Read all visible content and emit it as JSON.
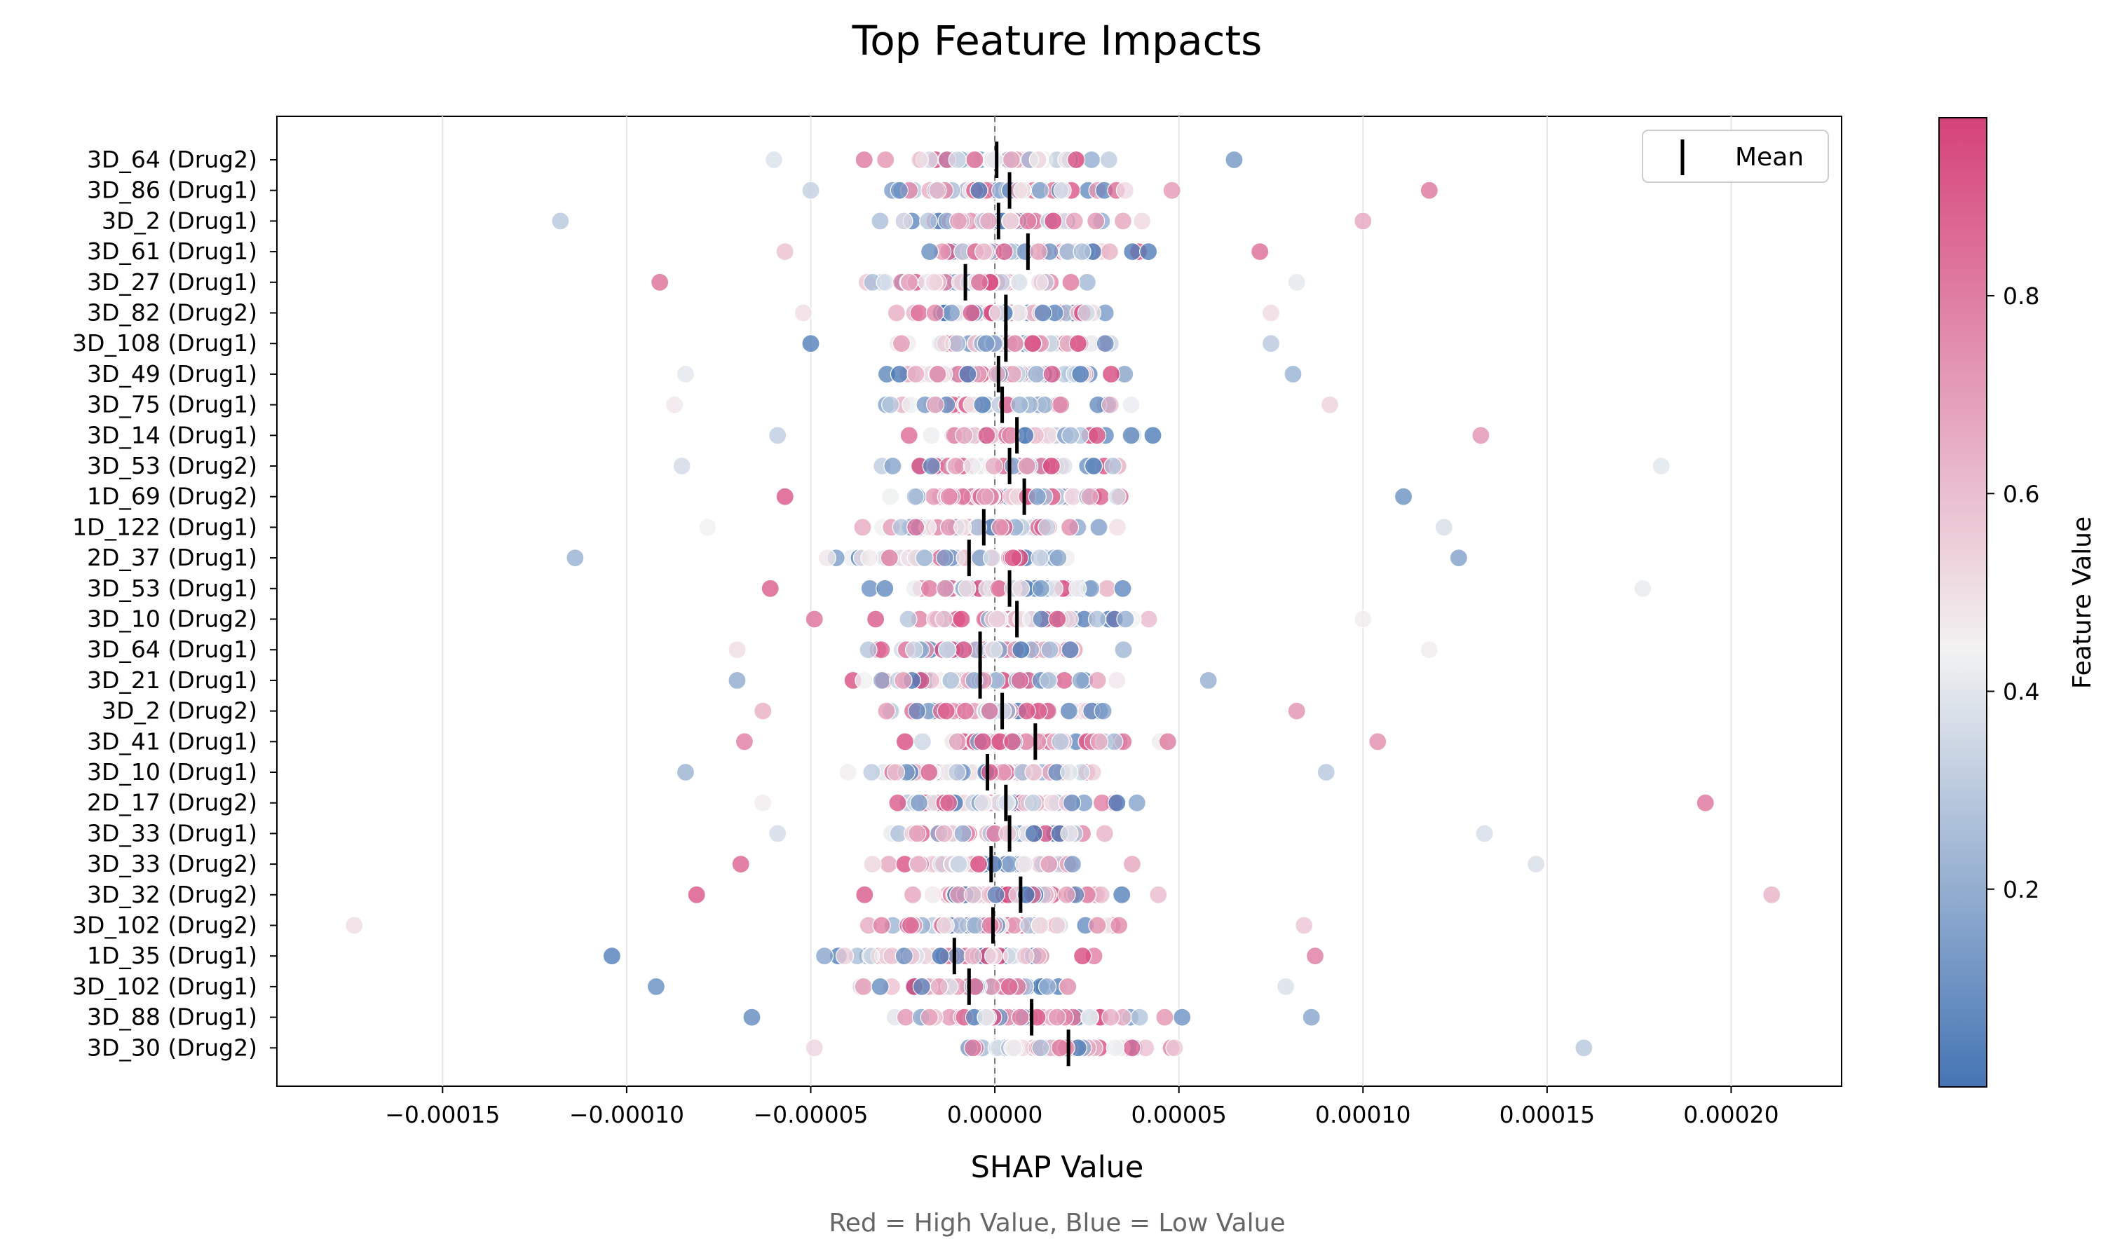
{
  "chart_data": {
    "type": "scatter",
    "title": "Top Feature Impacts",
    "xlabel": "SHAP Value",
    "ylabel": "",
    "footnote": "Red = High Value, Blue = Low Value",
    "xlim": [
      -0.000195,
      0.00023
    ],
    "x_ticks": [
      -0.00015,
      -0.0001,
      -5e-05,
      0.0,
      5e-05,
      0.0001,
      0.00015,
      0.0002
    ],
    "x_tick_labels": [
      "−0.00015",
      "−0.00010",
      "−0.00005",
      "0.00000",
      "0.00005",
      "0.00010",
      "0.00015",
      "0.00020"
    ],
    "grid": "vertical",
    "zero_line": "dashed",
    "legend": {
      "position": "top-right",
      "entries": [
        {
          "label": "Mean",
          "marker": "vertical-bar"
        }
      ]
    },
    "colorbar": {
      "label": "Feature Value",
      "range": [
        0.0,
        0.98
      ],
      "ticks": [
        0.2,
        0.4,
        0.6,
        0.8
      ],
      "tick_labels": [
        "0.2",
        "0.4",
        "0.6",
        "0.8"
      ],
      "colors": {
        "low": "#4575b4",
        "mid": "#f2f2f2",
        "high": "#d6437a"
      }
    },
    "features": [
      {
        "name": "3D_64 (Drug2)",
        "mean": 5e-07,
        "min": -6e-05,
        "max": 6.5e-05
      },
      {
        "name": "3D_86 (Drug1)",
        "mean": 4e-06,
        "min": -5e-05,
        "max": 0.000118
      },
      {
        "name": "3D_2 (Drug1)",
        "mean": 1e-06,
        "min": -0.000118,
        "max": 0.0001
      },
      {
        "name": "3D_61 (Drug1)",
        "mean": 9e-06,
        "min": -5.7e-05,
        "max": 7.2e-05
      },
      {
        "name": "3D_27 (Drug1)",
        "mean": -8e-06,
        "min": -9.1e-05,
        "max": 8.2e-05
      },
      {
        "name": "3D_82 (Drug2)",
        "mean": 3e-06,
        "min": -5.2e-05,
        "max": 7.5e-05
      },
      {
        "name": "3D_108 (Drug1)",
        "mean": 3e-06,
        "min": -5e-05,
        "max": 7.5e-05
      },
      {
        "name": "3D_49 (Drug1)",
        "mean": 1e-06,
        "min": -8.4e-05,
        "max": 8.1e-05
      },
      {
        "name": "3D_75 (Drug1)",
        "mean": 2e-06,
        "min": -8.7e-05,
        "max": 9.1e-05
      },
      {
        "name": "3D_14 (Drug1)",
        "mean": 6e-06,
        "min": -5.9e-05,
        "max": 0.000132
      },
      {
        "name": "3D_53 (Drug2)",
        "mean": 4e-06,
        "min": -8.5e-05,
        "max": 0.000181
      },
      {
        "name": "1D_69 (Drug2)",
        "mean": 8e-06,
        "min": -5.7e-05,
        "max": 0.000111
      },
      {
        "name": "1D_122 (Drug1)",
        "mean": -3e-06,
        "min": -7.8e-05,
        "max": 0.000122
      },
      {
        "name": "2D_37 (Drug1)",
        "mean": -7e-06,
        "min": -0.000114,
        "max": 0.000126
      },
      {
        "name": "3D_53 (Drug1)",
        "mean": 4e-06,
        "min": -6.1e-05,
        "max": 0.000176
      },
      {
        "name": "3D_10 (Drug2)",
        "mean": 6e-06,
        "min": -4.9e-05,
        "max": 0.0001
      },
      {
        "name": "3D_64 (Drug1)",
        "mean": -4e-06,
        "min": -7e-05,
        "max": 0.000118
      },
      {
        "name": "3D_21 (Drug1)",
        "mean": -4e-06,
        "min": -7e-05,
        "max": 5.8e-05
      },
      {
        "name": "3D_2 (Drug2)",
        "mean": 2e-06,
        "min": -6.3e-05,
        "max": 8.2e-05
      },
      {
        "name": "3D_41 (Drug1)",
        "mean": 1.1e-05,
        "min": -6.8e-05,
        "max": 0.000104
      },
      {
        "name": "3D_10 (Drug1)",
        "mean": -2e-06,
        "min": -8.4e-05,
        "max": 9e-05
      },
      {
        "name": "2D_17 (Drug2)",
        "mean": 3e-06,
        "min": -6.3e-05,
        "max": 0.000193
      },
      {
        "name": "3D_33 (Drug1)",
        "mean": 4e-06,
        "min": -5.9e-05,
        "max": 0.000133
      },
      {
        "name": "3D_33 (Drug2)",
        "mean": -1e-06,
        "min": -6.9e-05,
        "max": 0.000147
      },
      {
        "name": "3D_32 (Drug2)",
        "mean": 7e-06,
        "min": -8.1e-05,
        "max": 0.000211
      },
      {
        "name": "3D_102 (Drug2)",
        "mean": -5e-07,
        "min": -0.000174,
        "max": 8.4e-05
      },
      {
        "name": "1D_35 (Drug1)",
        "mean": -1.1e-05,
        "min": -0.000104,
        "max": 8.7e-05
      },
      {
        "name": "3D_102 (Drug1)",
        "mean": -7e-06,
        "min": -9.2e-05,
        "max": 7.9e-05
      },
      {
        "name": "3D_88 (Drug1)",
        "mean": 1e-05,
        "min": -6.6e-05,
        "max": 8.6e-05
      },
      {
        "name": "3D_30 (Drug2)",
        "mean": 2e-05,
        "min": -4.9e-05,
        "max": 0.00016
      }
    ]
  }
}
